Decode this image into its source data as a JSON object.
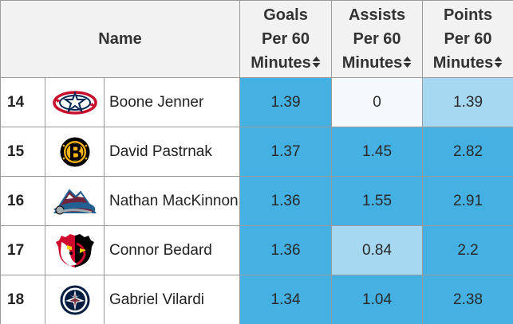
{
  "header": {
    "name": "Name",
    "goals": [
      "Goals",
      "Per 60",
      "Minutes"
    ],
    "assists": [
      "Assists",
      "Per 60",
      "Minutes"
    ],
    "points": [
      "Points",
      "Per 60",
      "Minutes"
    ]
  },
  "rows": [
    {
      "rank": "14",
      "team_logo": "columbus-blue-jackets-logo",
      "player": "Boone Jenner",
      "goals": "1.39",
      "assists": "0",
      "points": "1.39",
      "colors": {
        "goals": "#45b0e2",
        "assists": "#f3f9fd",
        "points": "#a6d8f2"
      }
    },
    {
      "rank": "15",
      "team_logo": "boston-bruins-logo",
      "player": "David Pastrnak",
      "goals": "1.37",
      "assists": "1.45",
      "points": "2.82",
      "colors": {
        "goals": "#45b0e2",
        "assists": "#45b0e2",
        "points": "#45b0e2"
      }
    },
    {
      "rank": "16",
      "team_logo": "colorado-avalanche-logo",
      "player": "Nathan MacKinnon",
      "goals": "1.36",
      "assists": "1.55",
      "points": "2.91",
      "colors": {
        "goals": "#45b0e2",
        "assists": "#45b0e2",
        "points": "#45b0e2"
      }
    },
    {
      "rank": "17",
      "team_logo": "chicago-blackhawks-logo",
      "player": "Connor Bedard",
      "goals": "1.36",
      "assists": "0.84",
      "points": "2.2",
      "colors": {
        "goals": "#45b0e2",
        "assists": "#a6d8f2",
        "points": "#45b0e2"
      }
    },
    {
      "rank": "18",
      "team_logo": "winnipeg-jets-logo",
      "player": "Gabriel Vilardi",
      "goals": "1.34",
      "assists": "1.04",
      "points": "2.38",
      "colors": {
        "goals": "#45b0e2",
        "assists": "#45b0e2",
        "points": "#45b0e2"
      }
    }
  ]
}
